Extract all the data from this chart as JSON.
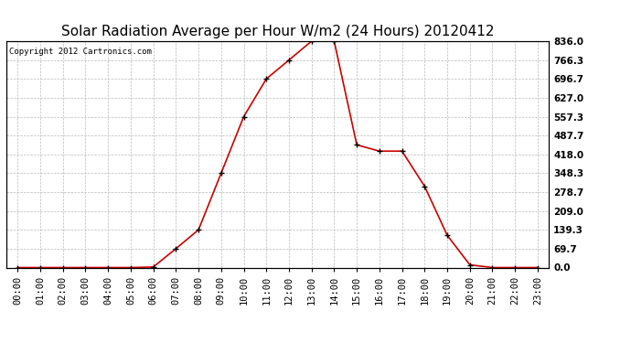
{
  "title": "Solar Radiation Average per Hour W/m2 (24 Hours) 20120412",
  "copyright": "Copyright 2012 Cartronics.com",
  "hours": [
    "00:00",
    "01:00",
    "02:00",
    "03:00",
    "04:00",
    "05:00",
    "06:00",
    "07:00",
    "08:00",
    "09:00",
    "10:00",
    "11:00",
    "12:00",
    "13:00",
    "14:00",
    "15:00",
    "16:00",
    "17:00",
    "18:00",
    "19:00",
    "20:00",
    "21:00",
    "22:00",
    "23:00"
  ],
  "values": [
    0.0,
    0.0,
    0.0,
    0.0,
    0.0,
    0.0,
    2.0,
    69.7,
    139.3,
    348.3,
    557.3,
    696.7,
    766.3,
    836.0,
    836.0,
    453.0,
    430.0,
    430.0,
    300.0,
    119.0,
    10.0,
    0.0,
    0.0,
    0.0
  ],
  "line_color": "#cc0000",
  "marker_color": "#000000",
  "bg_color": "#ffffff",
  "plot_bg_color": "#ffffff",
  "grid_color": "#bbbbbb",
  "title_fontsize": 11,
  "copyright_fontsize": 6.5,
  "tick_fontsize": 7.5,
  "ylim": [
    0.0,
    836.0
  ],
  "yticks": [
    0.0,
    69.7,
    139.3,
    209.0,
    278.7,
    348.3,
    418.0,
    487.7,
    557.3,
    627.0,
    696.7,
    766.3,
    836.0
  ]
}
